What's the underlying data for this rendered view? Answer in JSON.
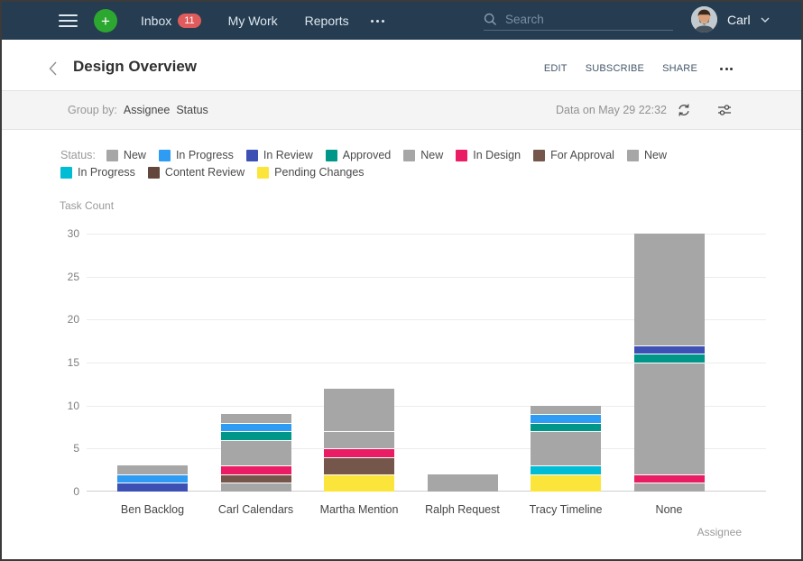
{
  "navbar": {
    "menu_items": [
      {
        "label": "Inbox",
        "badge": "11"
      },
      {
        "label": "My Work",
        "badge": null
      },
      {
        "label": "Reports",
        "badge": null
      }
    ],
    "search_placeholder": "Search",
    "user_name": "Carl",
    "colors": {
      "background": "#253c51",
      "accent_green": "#2ca830",
      "badge_red": "#e05c5c"
    }
  },
  "header": {
    "title": "Design Overview",
    "actions": [
      "EDIT",
      "SUBSCRIBE",
      "SHARE"
    ]
  },
  "toolbar": {
    "group_by_label": "Group by:",
    "group_by_values": [
      "Assignee",
      "Status"
    ],
    "data_timestamp": "Data on May 29 22:32"
  },
  "chart_data": {
    "type": "bar",
    "stacked": true,
    "legend_label": "Status:",
    "ylabel": "Task Count",
    "xlabel": "Assignee",
    "ylim": [
      0,
      30
    ],
    "yticks": [
      0,
      5,
      10,
      15,
      20,
      25,
      30
    ],
    "grid": true,
    "legend_position": "top",
    "categories": [
      "Ben Backlog",
      "Carl Calendars",
      "Martha Mention",
      "Ralph Request",
      "Tracy Timeline",
      "None"
    ],
    "series": [
      {
        "name": "New",
        "color": "#a6a6a6",
        "values": [
          1,
          1,
          5,
          2,
          1,
          13
        ]
      },
      {
        "name": "In Progress",
        "color": "#2e9cf3",
        "values": [
          1,
          1,
          0,
          0,
          1,
          0
        ]
      },
      {
        "name": "In Review",
        "color": "#3d51b5",
        "values": [
          1,
          0,
          0,
          0,
          0,
          1
        ]
      },
      {
        "name": "Approved",
        "color": "#009688",
        "values": [
          0,
          1,
          0,
          0,
          1,
          1
        ]
      },
      {
        "name": "New",
        "color": "#a6a6a6",
        "values": [
          0,
          3,
          2,
          0,
          4,
          13
        ]
      },
      {
        "name": "In Design",
        "color": "#ea1c63",
        "values": [
          0,
          1,
          1,
          0,
          0,
          1
        ]
      },
      {
        "name": "For Approval",
        "color": "#75564a",
        "values": [
          0,
          1,
          2,
          0,
          0,
          0
        ]
      },
      {
        "name": "New",
        "color": "#a6a6a6",
        "values": [
          0,
          1,
          0,
          0,
          0,
          1
        ]
      },
      {
        "name": "In Progress",
        "color": "#00bcd4",
        "values": [
          0,
          0,
          0,
          0,
          1,
          0
        ]
      },
      {
        "name": "Content Review",
        "color": "#63463c",
        "values": [
          0,
          0,
          0,
          0,
          0,
          0
        ]
      },
      {
        "name": "Pending Changes",
        "color": "#fce53a",
        "values": [
          0,
          0,
          2,
          0,
          2,
          0
        ]
      }
    ]
  }
}
